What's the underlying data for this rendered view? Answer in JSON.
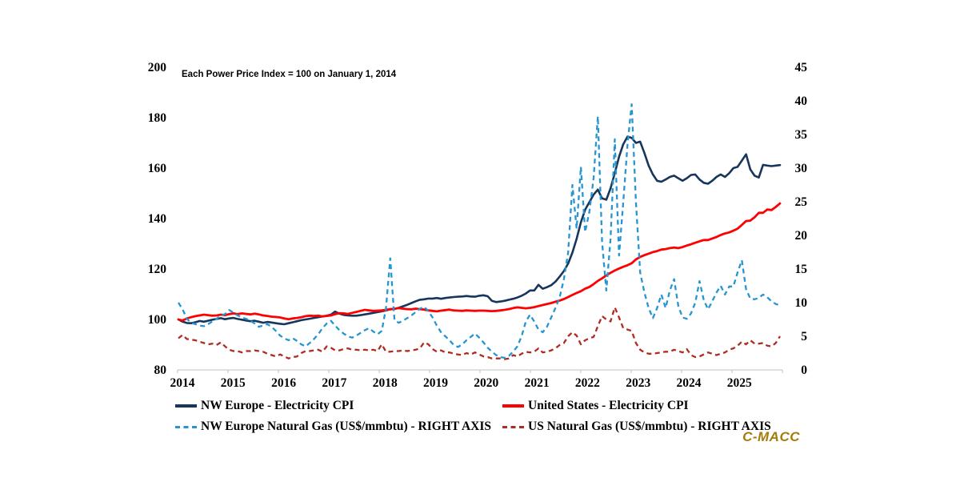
{
  "branding": {
    "logo_text": "C-MACC",
    "color": "#A57C0A"
  },
  "chart_data": {
    "type": "line",
    "note": "Each Power Price Index = 100 on January 1, 2014",
    "x_years": [
      "2014",
      "2015",
      "2016",
      "2017",
      "2018",
      "2019",
      "2020",
      "2021",
      "2022",
      "2023",
      "2024",
      "2025"
    ],
    "x_resolution": "monthly, Jan 2014 - Nov 2025",
    "grid": "off",
    "left_axis": {
      "min": 80,
      "max": 200,
      "step": 20,
      "ticks": [
        "200",
        "180",
        "160",
        "140",
        "120",
        "100",
        "80"
      ]
    },
    "right_axis": {
      "min": 0,
      "max": 45,
      "step": 5,
      "ticks": [
        "45",
        "40",
        "35",
        "30",
        "25",
        "20",
        "15",
        "10",
        "5",
        "0"
      ]
    },
    "legend_position": "bottom",
    "draw_order": [
      0,
      1,
      3,
      2
    ],
    "series": [
      {
        "name": "NW Europe - Electricity CPI",
        "axis": "left",
        "style": "solid",
        "color": "#16365C",
        "width": 2.6,
        "values": [
          100.0,
          99.1,
          98.6,
          98.5,
          98.9,
          99.4,
          99.1,
          99.5,
          99.9,
          100.2,
          100.5,
          100.1,
          100.4,
          100.6,
          100.2,
          99.9,
          99.6,
          99.3,
          99.5,
          99.1,
          98.7,
          99.0,
          98.8,
          98.5,
          98.3,
          98.1,
          98.5,
          98.9,
          99.3,
          99.7,
          100.0,
          100.3,
          100.6,
          100.9,
          101.2,
          101.5,
          101.9,
          103.1,
          102.3,
          101.8,
          101.6,
          101.5,
          101.5,
          101.7,
          102.0,
          102.3,
          102.6,
          102.9,
          103.2,
          103.6,
          104.0,
          104.2,
          104.6,
          105.2,
          105.8,
          106.5,
          107.2,
          107.8,
          108.0,
          108.3,
          108.3,
          108.5,
          108.2,
          108.5,
          108.7,
          108.9,
          109.0,
          109.1,
          109.3,
          109.1,
          109.0,
          109.4,
          109.6,
          109.2,
          107.4,
          106.9,
          107.1,
          107.4,
          107.8,
          108.2,
          108.7,
          109.4,
          110.3,
          111.5,
          111.5,
          113.7,
          112.2,
          112.8,
          113.6,
          115.0,
          117.0,
          119.2,
          122.2,
          126.5,
          132.0,
          138.5,
          143.5,
          146.5,
          149.5,
          151.5,
          148.0,
          147.5,
          152.0,
          158.0,
          164.5,
          169.5,
          172.5,
          172.0,
          170.0,
          170.5,
          166.0,
          161.0,
          157.5,
          155.0,
          154.6,
          155.5,
          156.5,
          157.0,
          156.0,
          155.0,
          156.0,
          157.3,
          157.5,
          155.5,
          154.2,
          153.8,
          155.0,
          156.5,
          157.5,
          156.5,
          158.0,
          160.0,
          160.5,
          163.0,
          165.5,
          159.5,
          157.0,
          156.3,
          161.3,
          161.0,
          160.8,
          161.0,
          161.2
        ]
      },
      {
        "name": "United States - Electricity CPI",
        "axis": "left",
        "style": "solid",
        "color": "#FF0000",
        "width": 2.8,
        "values": [
          100.0,
          99.6,
          100.4,
          100.9,
          101.3,
          101.6,
          101.9,
          101.7,
          101.5,
          101.6,
          101.9,
          101.7,
          102.1,
          102.4,
          102.1,
          102.4,
          102.2,
          102.0,
          102.3,
          102.0,
          101.6,
          101.4,
          101.1,
          101.0,
          100.8,
          100.4,
          100.1,
          100.4,
          100.6,
          100.9,
          101.3,
          101.5,
          101.4,
          101.5,
          101.2,
          101.4,
          101.6,
          102.1,
          102.5,
          102.4,
          102.2,
          102.6,
          103.0,
          103.4,
          103.8,
          103.6,
          103.4,
          103.5,
          103.6,
          103.8,
          104.1,
          104.2,
          104.5,
          104.3,
          104.1,
          104.0,
          104.3,
          104.1,
          103.9,
          103.6,
          103.4,
          103.2,
          103.5,
          103.7,
          103.9,
          103.6,
          103.5,
          103.4,
          103.6,
          103.5,
          103.4,
          103.5,
          103.5,
          103.4,
          103.3,
          103.4,
          103.6,
          103.8,
          104.1,
          104.5,
          104.8,
          104.6,
          104.4,
          104.6,
          104.9,
          105.3,
          105.7,
          106.1,
          106.5,
          107.0,
          107.5,
          108.1,
          108.9,
          109.7,
          110.5,
          111.2,
          112.2,
          112.9,
          114.0,
          115.3,
          116.3,
          117.5,
          118.5,
          119.4,
          120.2,
          120.9,
          121.5,
          122.3,
          123.8,
          124.8,
          125.5,
          126.1,
          126.7,
          127.1,
          127.7,
          127.9,
          128.3,
          128.5,
          128.3,
          128.7,
          129.3,
          129.8,
          130.4,
          131.0,
          131.5,
          131.5,
          132.1,
          132.7,
          133.5,
          134.1,
          134.5,
          135.2,
          136.0,
          137.5,
          139.0,
          139.2,
          140.5,
          142.3,
          142.3,
          143.6,
          143.4,
          144.6,
          146.0
        ]
      },
      {
        "name": "NW Europe Natural Gas (US$/mmbtu) - RIGHT AXIS",
        "axis": "right",
        "style": "dashed",
        "color": "#2795D0",
        "width": 2.3,
        "values": [
          10.0,
          9.0,
          7.6,
          7.0,
          6.8,
          6.6,
          6.5,
          6.8,
          7.2,
          7.6,
          8.1,
          8.3,
          8.9,
          8.5,
          8.1,
          7.8,
          7.6,
          7.3,
          6.9,
          6.4,
          6.6,
          6.8,
          6.4,
          5.8,
          5.1,
          4.7,
          4.4,
          4.7,
          4.3,
          3.8,
          3.5,
          4.0,
          4.6,
          5.3,
          6.2,
          6.9,
          7.3,
          6.6,
          5.9,
          5.4,
          5.0,
          4.8,
          5.1,
          5.5,
          5.9,
          6.2,
          5.7,
          5.3,
          5.8,
          9.2,
          16.6,
          7.4,
          7.0,
          7.3,
          7.7,
          8.1,
          8.6,
          9.1,
          9.4,
          8.7,
          7.8,
          6.6,
          5.6,
          5.0,
          4.4,
          3.7,
          3.4,
          3.8,
          4.4,
          4.9,
          5.4,
          4.8,
          4.1,
          3.3,
          2.7,
          2.2,
          1.9,
          1.8,
          2.1,
          2.7,
          3.5,
          5.0,
          7.2,
          8.2,
          7.2,
          6.0,
          5.6,
          6.4,
          7.8,
          9.2,
          10.8,
          13.5,
          17.5,
          27.5,
          21.0,
          30.2,
          20.5,
          23.5,
          28.5,
          37.7,
          19.0,
          11.8,
          19.5,
          34.3,
          17.0,
          25.0,
          33.5,
          39.5,
          25.0,
          14.5,
          11.5,
          9.2,
          7.7,
          9.2,
          11.2,
          9.2,
          11.8,
          13.5,
          9.5,
          7.8,
          7.6,
          8.4,
          10.0,
          13.2,
          10.4,
          9.0,
          10.2,
          11.5,
          12.5,
          11.2,
          12.4,
          12.4,
          14.5,
          16.3,
          12.0,
          10.6,
          10.5,
          10.7,
          11.2,
          10.8,
          10.2,
          9.8,
          9.6
        ]
      },
      {
        "name": "US Natural Gas (US$/mmbtu) - RIGHT AXIS",
        "axis": "right",
        "style": "dashed",
        "color": "#B02B20",
        "width": 2.3,
        "values": [
          4.7,
          5.2,
          4.6,
          4.5,
          4.4,
          4.2,
          4.0,
          3.8,
          3.9,
          3.7,
          4.1,
          3.5,
          3.0,
          2.8,
          2.8,
          2.6,
          2.8,
          2.8,
          2.9,
          2.8,
          2.7,
          2.4,
          2.2,
          2.0,
          2.3,
          2.0,
          1.7,
          1.9,
          2.0,
          2.5,
          2.8,
          2.8,
          2.9,
          3.0,
          2.7,
          3.5,
          3.3,
          2.9,
          2.9,
          3.1,
          3.2,
          3.0,
          3.0,
          2.9,
          3.0,
          2.9,
          3.0,
          2.8,
          3.8,
          2.7,
          2.7,
          2.8,
          2.8,
          2.9,
          2.8,
          2.9,
          3.0,
          3.2,
          4.1,
          3.8,
          3.1,
          2.7,
          2.9,
          2.6,
          2.6,
          2.4,
          2.3,
          2.2,
          2.5,
          2.3,
          2.6,
          2.3,
          2.0,
          1.9,
          1.7,
          1.7,
          1.7,
          1.6,
          1.7,
          2.2,
          2.0,
          2.4,
          2.7,
          2.6,
          2.7,
          3.2,
          2.6,
          2.7,
          2.9,
          3.2,
          3.7,
          4.0,
          5.0,
          5.6,
          5.1,
          3.8,
          4.4,
          4.7,
          4.9,
          6.5,
          8.0,
          7.5,
          7.2,
          9.3,
          7.8,
          6.2,
          6.0,
          5.8,
          4.0,
          3.0,
          2.6,
          2.4,
          2.4,
          2.5,
          2.6,
          2.7,
          2.7,
          3.0,
          2.8,
          2.6,
          3.1,
          2.2,
          1.9,
          2.0,
          2.3,
          2.6,
          2.4,
          2.2,
          2.4,
          2.6,
          3.0,
          3.2,
          3.6,
          4.2,
          3.8,
          4.4,
          3.9,
          3.9,
          4.0,
          3.6,
          3.5,
          4.0,
          5.0
        ]
      }
    ]
  }
}
